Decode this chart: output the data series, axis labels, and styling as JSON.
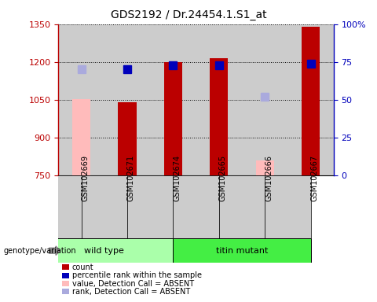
{
  "title": "GDS2192 / Dr.24454.1.S1_at",
  "samples": [
    "GSM102669",
    "GSM102671",
    "GSM102674",
    "GSM102665",
    "GSM102666",
    "GSM102667"
  ],
  "groups": [
    {
      "name": "wild type",
      "indices": [
        0,
        1,
        2
      ],
      "color": "#aaffaa"
    },
    {
      "name": "titin mutant",
      "indices": [
        3,
        4,
        5
      ],
      "color": "#44ee44"
    }
  ],
  "bar_values": [
    1053,
    1040,
    1200,
    1215,
    810,
    1340
  ],
  "bar_absent": [
    true,
    false,
    false,
    false,
    true,
    false
  ],
  "bar_color_present": "#bb0000",
  "bar_color_absent": "#ffbbbb",
  "rank_values": [
    70,
    70,
    73,
    73,
    52,
    74
  ],
  "rank_absent": [
    true,
    false,
    false,
    false,
    true,
    false
  ],
  "rank_color_present": "#0000bb",
  "rank_color_absent": "#aaaadd",
  "ylim_left": [
    750,
    1350
  ],
  "ylim_right": [
    0,
    100
  ],
  "yticks_left": [
    750,
    900,
    1050,
    1200,
    1350
  ],
  "yticks_right": [
    0,
    25,
    50,
    75,
    100
  ],
  "ytick_labels_right": [
    "0",
    "25",
    "50",
    "75",
    "100%"
  ],
  "bar_width": 0.4,
  "bar_bottom": 750,
  "plot_bg_color": "#cccccc",
  "group_label": "genotype/variation",
  "legend_items": [
    {
      "label": "count",
      "color": "#bb0000"
    },
    {
      "label": "percentile rank within the sample",
      "color": "#0000bb"
    },
    {
      "label": "value, Detection Call = ABSENT",
      "color": "#ffbbbb"
    },
    {
      "label": "rank, Detection Call = ABSENT",
      "color": "#aaaadd"
    }
  ]
}
